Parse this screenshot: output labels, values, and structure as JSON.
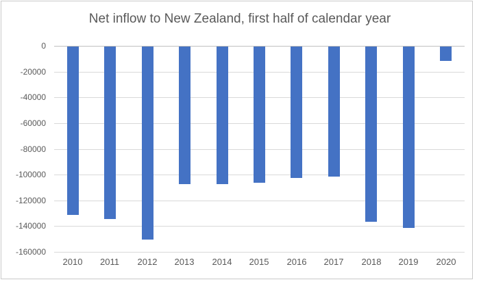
{
  "chart_data": {
    "type": "bar",
    "title": "Net inflow to New Zealand, first half of calendar year",
    "categories": [
      "2010",
      "2011",
      "2012",
      "2013",
      "2014",
      "2015",
      "2016",
      "2017",
      "2018",
      "2019",
      "2020"
    ],
    "values": [
      -131000,
      -134000,
      -150000,
      -107000,
      -107000,
      -106000,
      -102000,
      -101000,
      -136000,
      -141000,
      -11000
    ],
    "xlabel": "",
    "ylabel": "",
    "ylim": [
      -160000,
      0
    ],
    "y_ticks": [
      0,
      -20000,
      -40000,
      -60000,
      -80000,
      -100000,
      -120000,
      -140000,
      -160000
    ],
    "grid": true,
    "legend": false,
    "bar_color": "#4472C4",
    "zero_axis_color": "#BFBFBF",
    "gridline_color": "#D9D9D9",
    "text_color": "#595959",
    "frame_border_color": "#C9C9C9",
    "background_color": "#FFFFFF"
  }
}
